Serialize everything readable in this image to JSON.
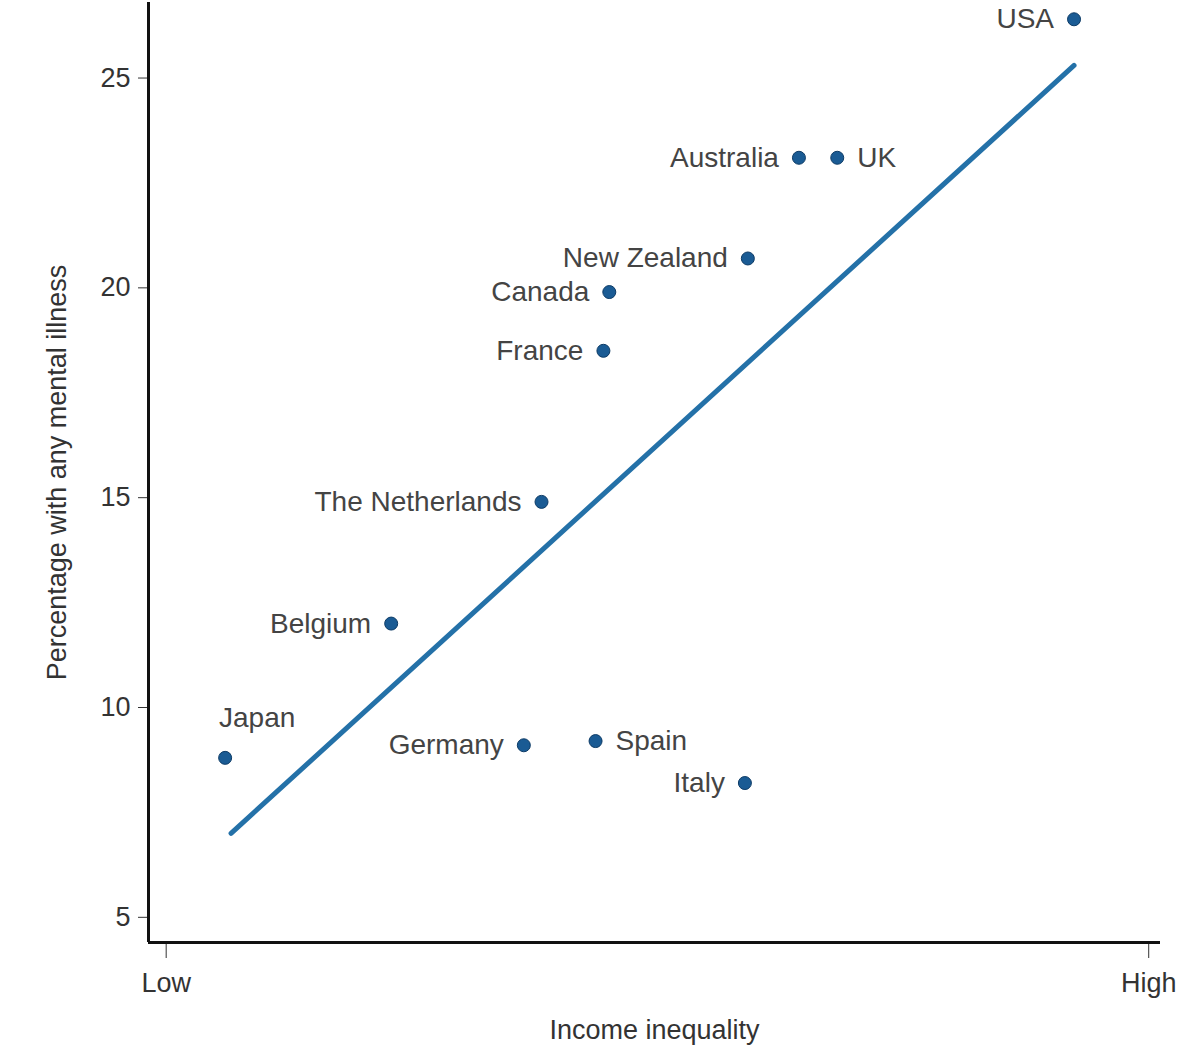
{
  "chart_data": {
    "type": "scatter",
    "x_label": "Income inequality",
    "y_label": "Percentage with any mental illness",
    "labels": [
      "USA",
      "Australia",
      "UK",
      "New Zealand",
      "Canada",
      "France",
      "The Netherlands",
      "Belgium",
      "Japan",
      "Germany",
      "Spain",
      "Italy"
    ],
    "x": [
      92.4,
      64.4,
      68.3,
      59.2,
      45.1,
      44.5,
      38.2,
      22.9,
      6.0,
      36.4,
      43.7,
      58.9
    ],
    "values": [
      26.4,
      23.1,
      23.1,
      20.7,
      19.9,
      18.5,
      14.9,
      12.0,
      8.8,
      9.1,
      9.2,
      8.2
    ],
    "color": "#1a5b94",
    "trend_line": {
      "x": [
        6.6,
        92.4
      ],
      "y": [
        7.0,
        25.3
      ],
      "color": "#2471a8"
    },
    "xlim": [
      -1.8,
      101.2
    ],
    "xticks": [
      {
        "value": 0,
        "label": "Low"
      },
      {
        "value": 100,
        "label": "High"
      }
    ],
    "ylim": [
      4.4,
      26.8
    ],
    "yticks": [
      5,
      10,
      15,
      20,
      25
    ],
    "grid": false
  }
}
